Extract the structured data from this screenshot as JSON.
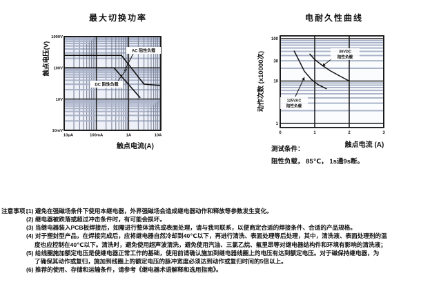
{
  "page": {
    "background": "#ffffff"
  },
  "colors": {
    "grid_minor_band": "#aab3c9",
    "grid_minor_vert": "#7a8296",
    "grid_major": "#222222",
    "plot_border": "#111111",
    "plot_bg_left": "#eef1f8",
    "plot_bg_right": "#fbfcfe",
    "curve": "#111111",
    "text": "#111111"
  },
  "charts": [
    {
      "title": "最大切换功率",
      "xlabel": "触点电流(A)",
      "ylabel": "触点电压(V)",
      "xticks": [
        "10μA",
        "100mA",
        "1A",
        "10A"
      ],
      "yticks": [
        "1000V",
        "100V",
        "10V",
        "10mV"
      ]
    },
    {
      "title": "电耐久性曲线",
      "xlabel": "触点电流 (A)",
      "ylabel": "动作次数 (x10000次)",
      "xticks": [
        "0",
        "1",
        "2",
        "3"
      ],
      "yticks": [
        "100",
        "30",
        "10",
        "1"
      ],
      "note_title": "测试条件：",
      "note_body": "阻性负载， 85℃， 1s通9s断。"
    }
  ],
  "annotations": {
    "left": [
      {
        "lines": [
          "AC 阻性负载"
        ]
      },
      {
        "lines": [
          "DC 阻性负载"
        ]
      }
    ],
    "right": [
      {
        "lines": [
          "30VDC",
          "阻性负载"
        ]
      },
      {
        "lines": [
          "125VAC",
          "阻性负载"
        ]
      }
    ]
  },
  "chart_data": [
    {
      "type": "line",
      "title": "最大切换功率",
      "xlabel": "触点电流(A)",
      "ylabel": "触点电压(V)",
      "x_scale": "log",
      "y_scale": "log",
      "x_range": [
        1e-05,
        10
      ],
      "y_range": [
        0.01,
        1000
      ],
      "x_tick_values": [
        1e-05,
        0.1,
        1,
        10
      ],
      "y_tick_values": [
        1000,
        100,
        10,
        0.01
      ],
      "grid": true,
      "series": [
        {
          "name": "AC 阻性负载",
          "points": [
            [
              1e-05,
              250
            ],
            [
              0.6,
              250
            ],
            [
              3,
              30
            ],
            [
              10,
              27
            ]
          ]
        },
        {
          "name": "DC 阻性负载",
          "points": [
            [
              1e-05,
              100
            ],
            [
              0.35,
              100
            ],
            [
              2.3,
              11
            ]
          ]
        }
      ]
    },
    {
      "type": "line",
      "title": "电耐久性曲线",
      "xlabel": "触点电流 (A)",
      "ylabel": "动作次数 (x10000次)",
      "x_scale": "linear",
      "y_scale": "log",
      "x_range": [
        0,
        3
      ],
      "y_range": [
        1,
        100
      ],
      "x_tick_values": [
        0,
        1,
        2,
        3
      ],
      "y_tick_values": [
        100,
        30,
        10,
        1
      ],
      "grid": true,
      "series": [
        {
          "name": "30VDC 阻性负载",
          "points": [
            [
              0.85,
              44
            ],
            [
              1.0,
              32
            ],
            [
              1.2,
              24
            ],
            [
              1.45,
              17.5
            ],
            [
              1.7,
              13.5
            ],
            [
              2.0,
              10
            ]
          ]
        },
        {
          "name": "125VAC 阻性负载",
          "points": [
            [
              0.4,
              52
            ],
            [
              0.55,
              30
            ],
            [
              0.7,
              17
            ],
            [
              0.9,
              11
            ],
            [
              1.1,
              8.2
            ],
            [
              1.35,
              6.5
            ]
          ]
        }
      ],
      "test_conditions": [
        "测试条件：",
        "阻性负载， 85℃， 1s通9s断。"
      ]
    }
  ],
  "notes": {
    "heading": "注意事项：",
    "lines": [
      {
        "cont": false,
        "text": "(1) 避免在强磁场条件下使用本继电器，外界强磁场会造成继电器动作和释放等参数发生变化。"
      },
      {
        "cont": false,
        "text": "(2) 继电器被跌落或超过冲击条件时，有可能会损坏。"
      },
      {
        "cont": false,
        "text": "(3) 当继电器装入PCB板焊接后，如需进行整体清洗或表面处理，请与我司联系，以便商定合适的焊接条件、合适的产品规格。"
      },
      {
        "cont": false,
        "text": "(4) 对于塑封型产品，在焊接完成后，应将继电器自然冷却到40℃以下，再进行清洗、表面处理等后处理，其中，清洗液、表面处理剂的温"
      },
      {
        "cont": true,
        "text": "度也应控制在40℃以下。清洗时，避免使用超声波清洗，避免使用汽油、三氯乙烷、氟里昂等对继电器结构件和环境有影响的清洗液；"
      },
      {
        "cont": false,
        "text": "(5) 给线圈施加额定电压是使继电器正常工作的基础，使用前请确认施加到继电器线圈上的电压有达到额定电压。对于磁保持继电器，为"
      },
      {
        "cont": true,
        "text": "了确保其动作或复归，施加到线圈上的额定电压的脉冲宽度必须达到动作或复归时间的5倍以上。"
      },
      {
        "cont": false,
        "text": "(6) 推荐的使用、存储和运输条件，请参考《继电器术语解释和选用指南》。"
      }
    ]
  }
}
